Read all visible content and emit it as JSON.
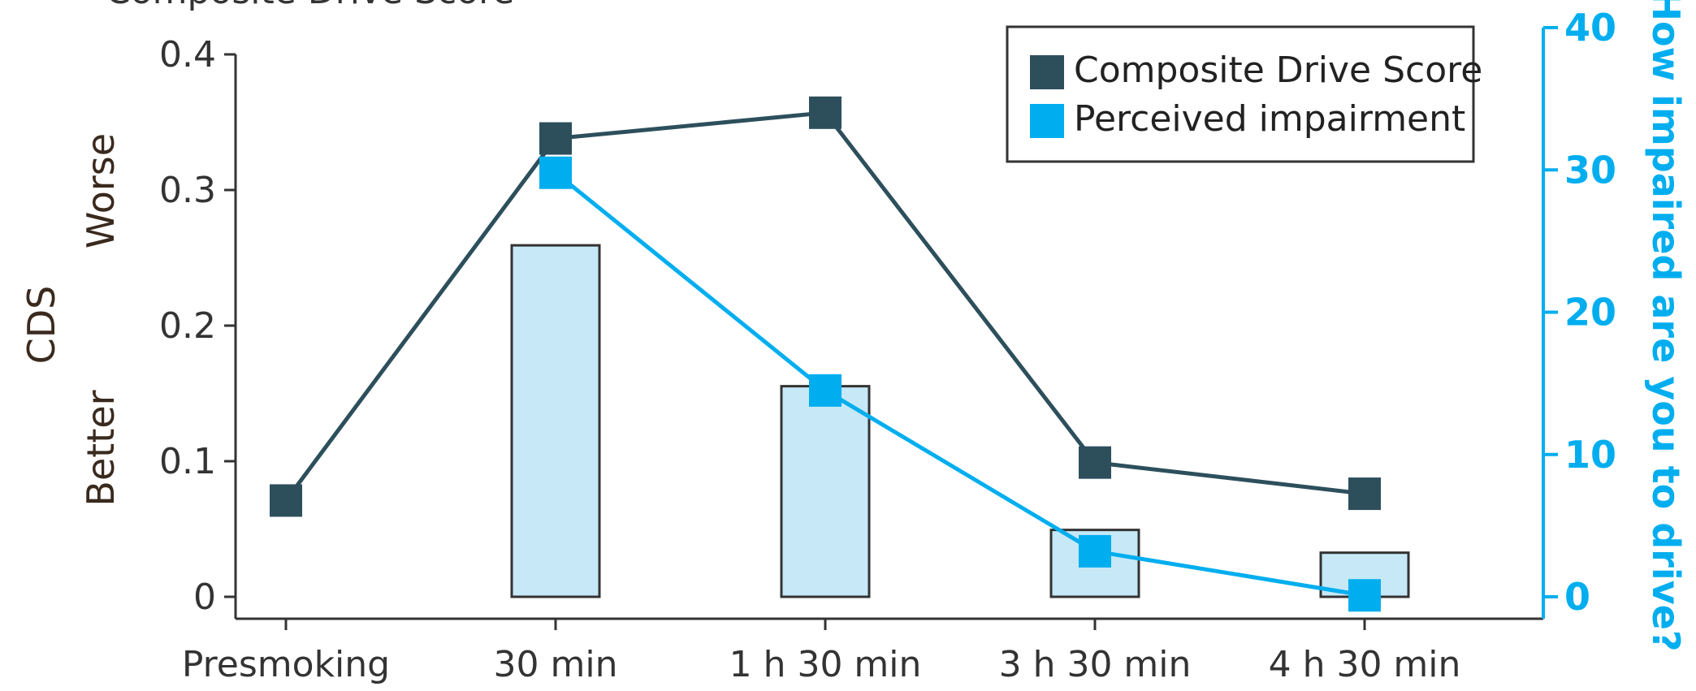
{
  "chart_data": {
    "type": "bar+line",
    "title": "Composite Drive Score",
    "categories": [
      "Presmoking",
      "30 min",
      "1 h 30 min",
      "3 h 30 min",
      "4 h 30 min"
    ],
    "y_left": {
      "label": "CDS",
      "ylim": [
        0,
        0.4
      ],
      "ticks": [
        "0",
        "0.1",
        "0.2",
        "0.3",
        "0.4"
      ],
      "tick_values": [
        0,
        0.1,
        0.2,
        0.3,
        0.4
      ],
      "better_label": "Better",
      "worse_label": "Worse"
    },
    "y_right": {
      "label": "How impaired are you to drive?",
      "ylim": [
        0,
        40
      ],
      "ticks": [
        "0",
        "10",
        "20",
        "30",
        "40"
      ],
      "tick_values": [
        0,
        10,
        20,
        30,
        40
      ]
    },
    "series": [
      {
        "name": "Composite Drive Score",
        "type": "line",
        "axis": "left",
        "color": "#2d4f5c",
        "values": [
          0.071,
          0.338,
          0.357,
          0.099,
          0.076
        ]
      },
      {
        "name": "Perceived impairment",
        "type": "line",
        "axis": "right",
        "color": "#00aeef",
        "values": [
          null,
          29.8,
          14.5,
          3.2,
          0.1
        ]
      },
      {
        "type": "bar",
        "axis": "right",
        "color": "#c6e8f7",
        "values": [
          0,
          24.7,
          14.8,
          4.7,
          3.1
        ]
      }
    ],
    "legend_position": "top-right",
    "grid": false
  }
}
